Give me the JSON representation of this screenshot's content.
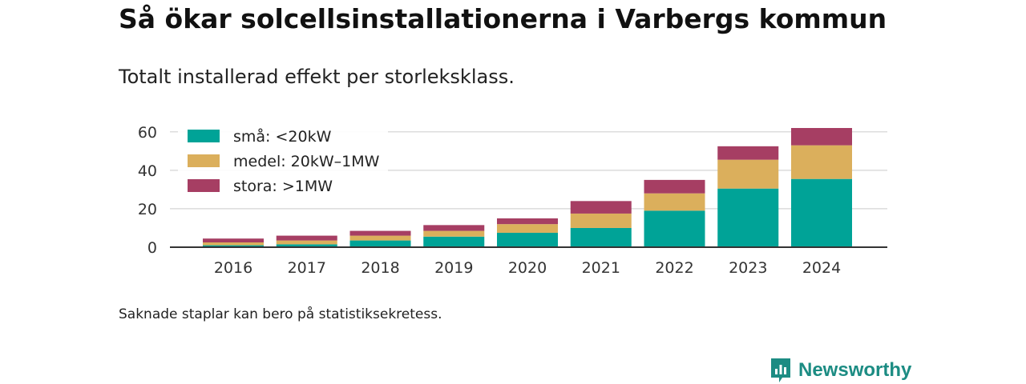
{
  "title": "Så ökar solcellsinstallationerna i Varbergs kommun",
  "subtitle": "Totalt installerad effekt per storleksklass.",
  "note": "Saknade staplar kan bero på statistiksekretess.",
  "brand": {
    "name": "Newsworthy",
    "color": "#1c8c83"
  },
  "chart_data": {
    "type": "bar",
    "stacked": true,
    "categories": [
      "2016",
      "2017",
      "2018",
      "2019",
      "2020",
      "2021",
      "2022",
      "2023",
      "2024"
    ],
    "series": [
      {
        "name": "små: <20kW",
        "color": "#00a397",
        "values": [
          1.0,
          1.5,
          3.5,
          5.5,
          7.5,
          10.0,
          19.0,
          30.5,
          35.5
        ]
      },
      {
        "name": "medel: 20kW–1MW",
        "color": "#dbaf5c",
        "values": [
          1.5,
          2.0,
          2.5,
          3.0,
          4.5,
          7.5,
          9.0,
          15.0,
          17.5
        ]
      },
      {
        "name": "stora: >1MW",
        "color": "#a63e63",
        "values": [
          2.0,
          2.5,
          2.5,
          3.0,
          3.0,
          6.5,
          7.0,
          7.0,
          9.0
        ]
      }
    ],
    "yticks": [
      0,
      20,
      40,
      60
    ],
    "ylim": [
      0,
      62
    ],
    "grid": true,
    "legend_position": "top-left"
  }
}
